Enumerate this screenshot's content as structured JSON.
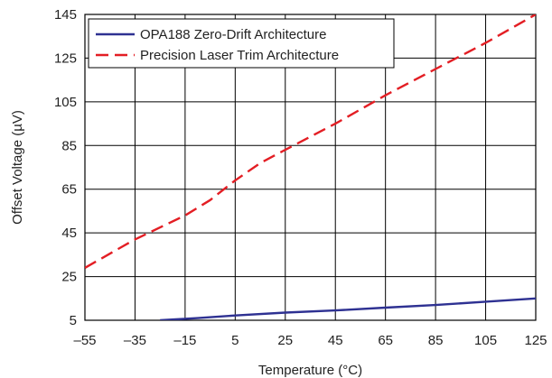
{
  "chart_data": {
    "type": "line",
    "title": "",
    "xlabel": "Temperature (°C)",
    "ylabel": "Offset Voltage (µV)",
    "xlim": [
      -55,
      125
    ],
    "ylim": [
      5,
      145
    ],
    "xticks": [
      -55,
      -35,
      -15,
      5,
      25,
      45,
      65,
      85,
      105,
      125
    ],
    "xtick_labels": [
      "–55",
      "–35",
      "–15",
      "5",
      "25",
      "45",
      "65",
      "85",
      "105",
      "125"
    ],
    "yticks": [
      5,
      25,
      45,
      65,
      85,
      105,
      125,
      145
    ],
    "ytick_labels": [
      "5",
      "25",
      "45",
      "65",
      "85",
      "105",
      "125",
      "145"
    ],
    "grid": true,
    "legend": "top-left",
    "series": [
      {
        "name": "OPA188 Zero-Drift Architecture",
        "color": "#2e3192",
        "dash": "solid",
        "x": [
          -25,
          -10,
          5,
          25,
          45,
          65,
          85,
          105,
          125
        ],
        "y": [
          5,
          6,
          7.2,
          8.5,
          9.5,
          10.8,
          12,
          13.5,
          15
        ]
      },
      {
        "name": "Precision Laser Trim Architecture",
        "color": "#e31e24",
        "dash": "dashed",
        "x": [
          -55,
          -35,
          -15,
          -5,
          5,
          15,
          25,
          45,
          65,
          85,
          105,
          125
        ],
        "y": [
          29,
          42,
          53,
          60,
          69,
          77,
          83,
          95,
          108,
          120,
          132,
          145
        ]
      }
    ]
  }
}
